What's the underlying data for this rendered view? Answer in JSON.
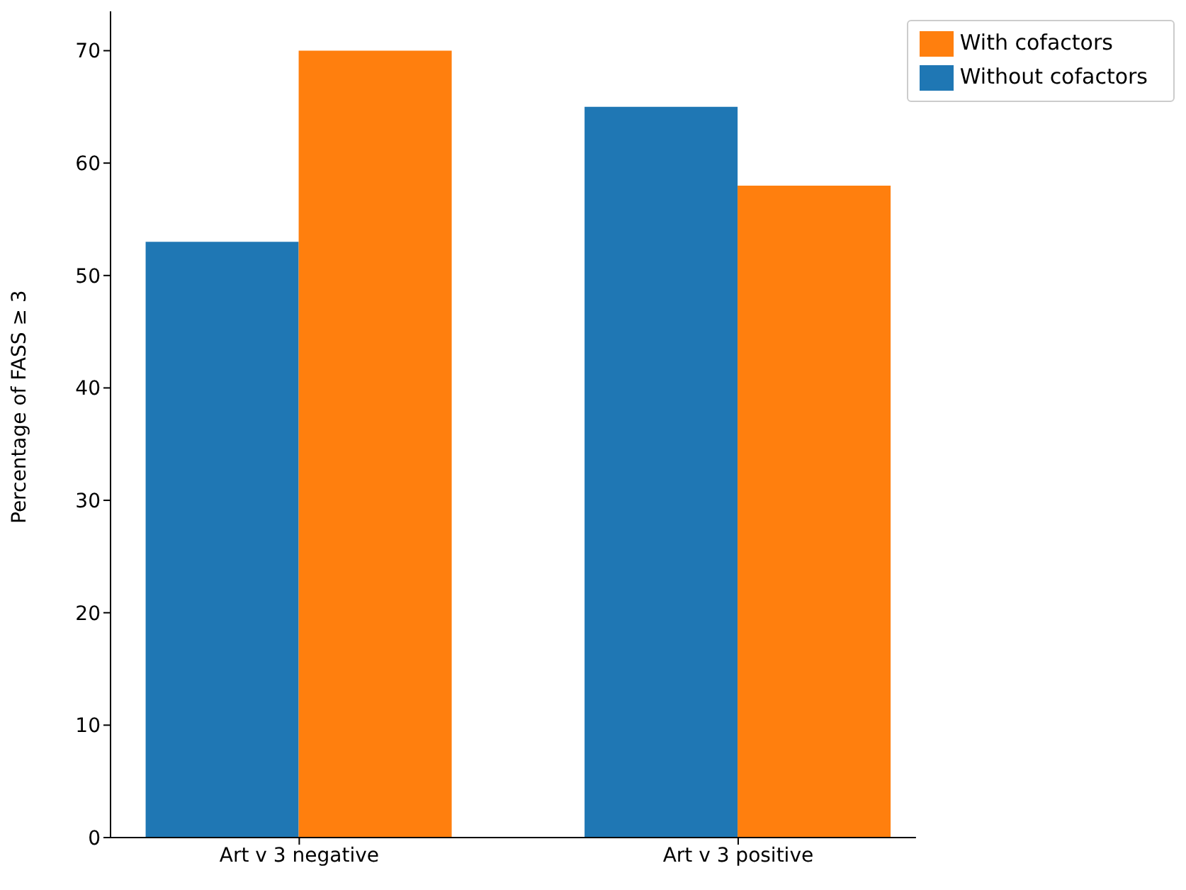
{
  "chart_data": {
    "type": "bar",
    "ylabel": "Percentage of FASS ≥ 3",
    "categories": [
      "Art v 3 negative",
      "Art v 3 positive"
    ],
    "series": [
      {
        "name": "Without cofactors",
        "color": "#1f77b4",
        "values": [
          53,
          65
        ]
      },
      {
        "name": "With cofactors",
        "color": "#ff7f0e",
        "values": [
          70,
          58
        ]
      }
    ],
    "ylim": [
      0,
      73.5
    ],
    "yticks": [
      0,
      10,
      20,
      30,
      40,
      50,
      60,
      70
    ],
    "grid": false,
    "legend": "top right"
  }
}
